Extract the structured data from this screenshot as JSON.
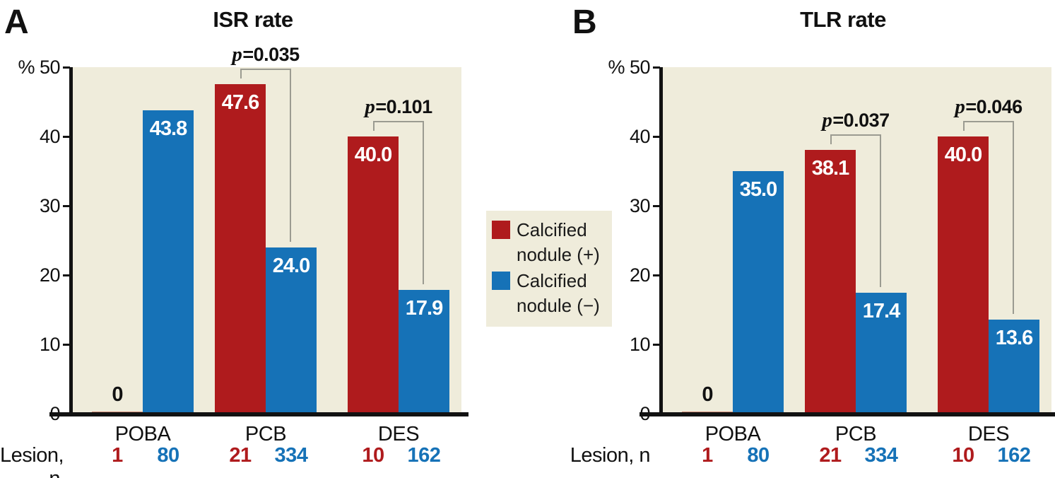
{
  "panels": [
    {
      "letter": "A"
    },
    {
      "letter": "B"
    }
  ],
  "legend": {
    "items": [
      {
        "lines": [
          "Calcified",
          "nodule (+)"
        ],
        "color": "#AF1B1D"
      },
      {
        "lines": [
          "Calcified",
          "nodule (−)"
        ],
        "color": "#1672B7"
      }
    ]
  },
  "lesion_label": "Lesion, n",
  "colors": {
    "positive_red": "#AF1B1D",
    "negative_blue": "#1672B7",
    "plot_background": "#EFECDB",
    "axis_black": "#121212",
    "bracket_grey": "#9B9B91",
    "zero_bar_sliver": "#CF8B76"
  },
  "chart_data": [
    {
      "type": "bar",
      "title": "ISR rate",
      "ylabel": "%",
      "ylim": [
        0,
        50
      ],
      "yticks": [
        50,
        40,
        30,
        20,
        10,
        0
      ],
      "y_top_tick_label": "% 50",
      "grid": false,
      "categories": [
        "POBA",
        "PCB",
        "DES"
      ],
      "series": [
        {
          "name": "Calcified nodule (+)",
          "color": "#AF1B1D",
          "values": [
            0,
            47.6,
            40.0
          ]
        },
        {
          "name": "Calcified nodule (−)",
          "color": "#1672B7",
          "values": [
            43.8,
            24.0,
            17.9
          ]
        }
      ],
      "bar_value_labels": [
        [
          "0",
          "47.6",
          "40.0"
        ],
        [
          "43.8",
          "24.0",
          "17.9"
        ]
      ],
      "p_values": [
        null,
        "0.035",
        "0.101"
      ],
      "lesion_counts": [
        [
          1,
          80
        ],
        [
          21,
          334
        ],
        [
          10,
          162
        ]
      ],
      "legend_position": "right-of-plot"
    },
    {
      "type": "bar",
      "title": "TLR rate",
      "ylabel": "%",
      "ylim": [
        0,
        50
      ],
      "yticks": [
        50,
        40,
        30,
        20,
        10,
        0
      ],
      "y_top_tick_label": "% 50",
      "grid": false,
      "categories": [
        "POBA",
        "PCB",
        "DES"
      ],
      "series": [
        {
          "name": "Calcified nodule (+)",
          "color": "#AF1B1D",
          "values": [
            0,
            38.1,
            40.0
          ]
        },
        {
          "name": "Calcified nodule (−)",
          "color": "#1672B7",
          "values": [
            35.0,
            17.4,
            13.6
          ]
        }
      ],
      "bar_value_labels": [
        [
          "0",
          "38.1",
          "40.0"
        ],
        [
          "35.0",
          "17.4",
          "13.6"
        ]
      ],
      "p_values": [
        null,
        "0.037",
        "0.046"
      ],
      "lesion_counts": [
        [
          1,
          80
        ],
        [
          21,
          334
        ],
        [
          10,
          162
        ]
      ],
      "legend_position": "none"
    }
  ]
}
